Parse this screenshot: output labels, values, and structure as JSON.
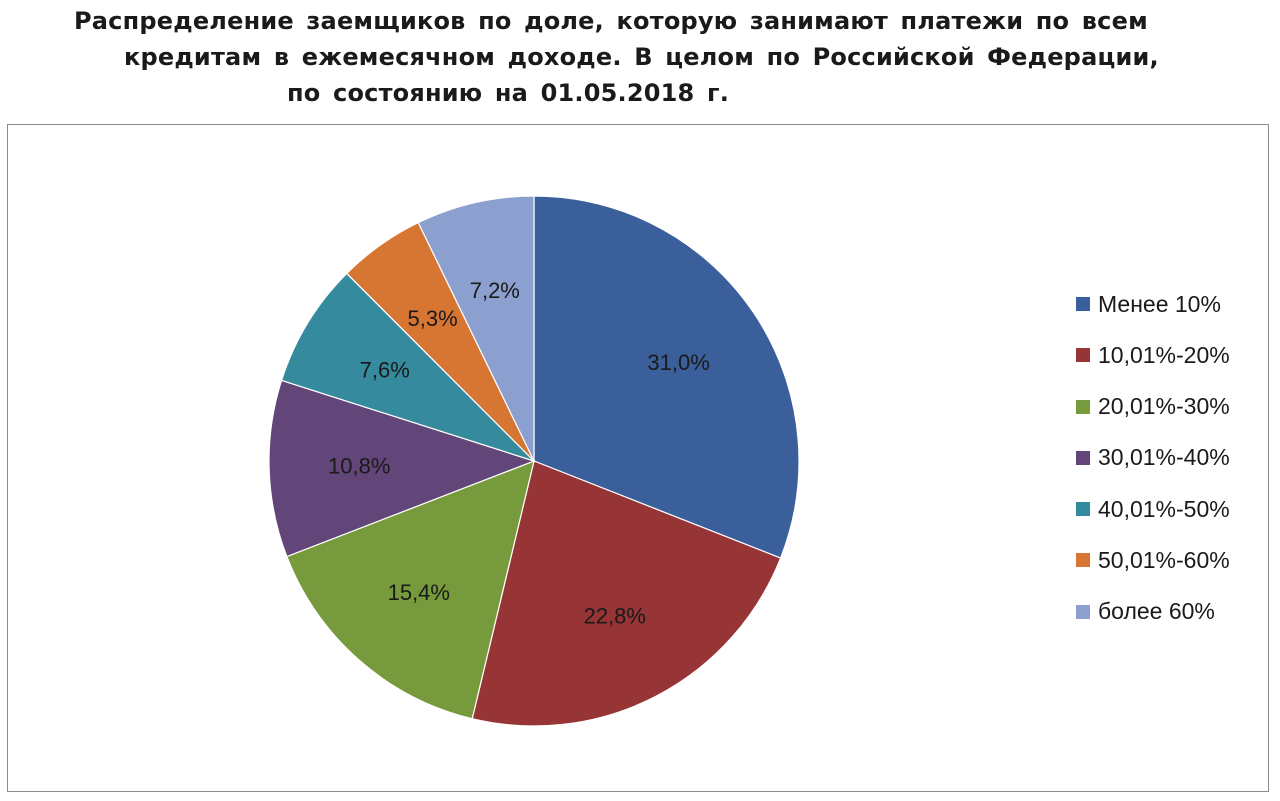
{
  "title": {
    "line1": "Распределение заемщиков по доле, которую занимают платежи по всем",
    "line2": "кредитам в ежемесячном доходе. В целом по Российской Федерации,",
    "line3": "по состоянию на 01.05.2018 г."
  },
  "chart_data": {
    "type": "pie",
    "title": "Распределение заемщиков по доле, которую занимают платежи по всем кредитам в ежемесячном доходе. В целом по Российской Федерации, по состоянию на 01.05.2018 г.",
    "start_angle_deg": 0,
    "direction": "clockwise",
    "legend_position": "right",
    "slices": [
      {
        "category": "Менее 10%",
        "value": 31.0,
        "label": "31,0%",
        "color": "#3a5f9b"
      },
      {
        "category": "10,01%-20%",
        "value": 22.8,
        "label": "22,8%",
        "color": "#973436"
      },
      {
        "category": "20,01%-30%",
        "value": 15.4,
        "label": "15,4%",
        "color": "#779a3c"
      },
      {
        "category": "30,01%-40%",
        "value": 10.8,
        "label": "10,8%",
        "color": "#624579"
      },
      {
        "category": "40,01%-50%",
        "value": 7.6,
        "label": "7,6%",
        "color": "#358a9e"
      },
      {
        "category": "50,01%-60%",
        "value": 5.3,
        "label": "5,3%",
        "color": "#d77533"
      },
      {
        "category": "более 60%",
        "value": 7.2,
        "label": "7,2%",
        "color": "#8ba0ce"
      }
    ]
  }
}
